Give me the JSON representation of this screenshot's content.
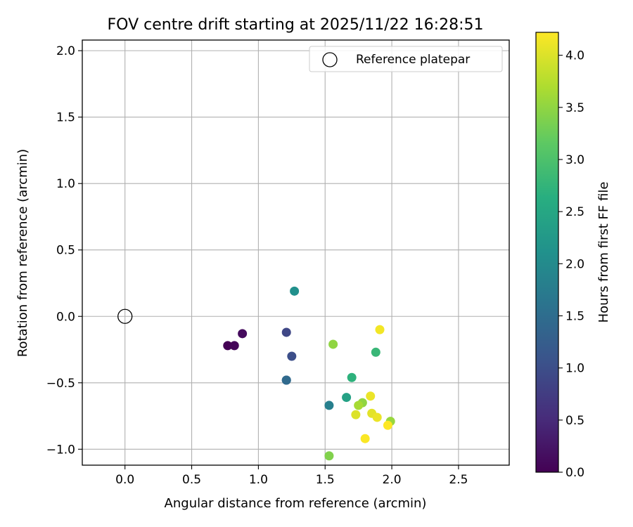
{
  "chart_data": {
    "type": "scatter",
    "title": "FOV centre drift starting at 2025/11/22 16:28:51",
    "xlabel": "Angular distance from reference (arcmin)",
    "ylabel": "Rotation from reference (arcmin)",
    "xlim": [
      -0.32,
      2.88
    ],
    "ylim": [
      -1.12,
      2.08
    ],
    "xticks": [
      "0.0",
      "0.5",
      "1.0",
      "1.5",
      "2.0",
      "2.5"
    ],
    "xtick_values": [
      0.0,
      0.5,
      1.0,
      1.5,
      2.0,
      2.5
    ],
    "yticks": [
      "−1.0",
      "−0.5",
      "0.0",
      "0.5",
      "1.0",
      "1.5",
      "2.0"
    ],
    "ytick_values": [
      -1.0,
      -0.5,
      0.0,
      0.5,
      1.0,
      1.5,
      2.0
    ],
    "grid": true,
    "legend": {
      "label": "Reference platepar",
      "position": "top-right"
    },
    "reference_point": {
      "x": 0.0,
      "y": 0.0
    },
    "colorbar": {
      "label": "Hours from first FF file",
      "range": [
        0.0,
        4.22
      ],
      "colormap": "viridis",
      "ticks": [
        "0.0",
        "0.5",
        "1.0",
        "1.5",
        "2.0",
        "2.5",
        "3.0",
        "3.5",
        "4.0"
      ],
      "tick_values": [
        0.0,
        0.5,
        1.0,
        1.5,
        2.0,
        2.5,
        3.0,
        3.5,
        4.0
      ]
    },
    "points": [
      {
        "x": 0.77,
        "y": -0.22,
        "hours": 0.0
      },
      {
        "x": 0.82,
        "y": -0.22,
        "hours": 0.05
      },
      {
        "x": 0.88,
        "y": -0.13,
        "hours": 0.12
      },
      {
        "x": 1.21,
        "y": -0.12,
        "hours": 0.9
      },
      {
        "x": 1.25,
        "y": -0.3,
        "hours": 1.0
      },
      {
        "x": 1.21,
        "y": -0.48,
        "hours": 1.25
      },
      {
        "x": 1.21,
        "y": -0.48,
        "hours": 1.45
      },
      {
        "x": 1.27,
        "y": 0.19,
        "hours": 2.1
      },
      {
        "x": 1.53,
        "y": -0.67,
        "hours": 1.8
      },
      {
        "x": 1.66,
        "y": -0.61,
        "hours": 2.4
      },
      {
        "x": 1.7,
        "y": -0.46,
        "hours": 2.7
      },
      {
        "x": 1.88,
        "y": -0.27,
        "hours": 2.8
      },
      {
        "x": 1.56,
        "y": -0.21,
        "hours": 3.5
      },
      {
        "x": 1.53,
        "y": -1.05,
        "hours": 3.4
      },
      {
        "x": 1.78,
        "y": -0.65,
        "hours": 3.5
      },
      {
        "x": 1.75,
        "y": -0.67,
        "hours": 3.65
      },
      {
        "x": 1.99,
        "y": -0.79,
        "hours": 3.55
      },
      {
        "x": 1.73,
        "y": -0.74,
        "hours": 4.0
      },
      {
        "x": 1.85,
        "y": -0.73,
        "hours": 4.05
      },
      {
        "x": 1.84,
        "y": -0.6,
        "hours": 4.1
      },
      {
        "x": 1.89,
        "y": -0.76,
        "hours": 4.1
      },
      {
        "x": 1.91,
        "y": -0.1,
        "hours": 4.15
      },
      {
        "x": 1.8,
        "y": -0.92,
        "hours": 4.2
      },
      {
        "x": 1.97,
        "y": -0.82,
        "hours": 4.22
      }
    ]
  }
}
